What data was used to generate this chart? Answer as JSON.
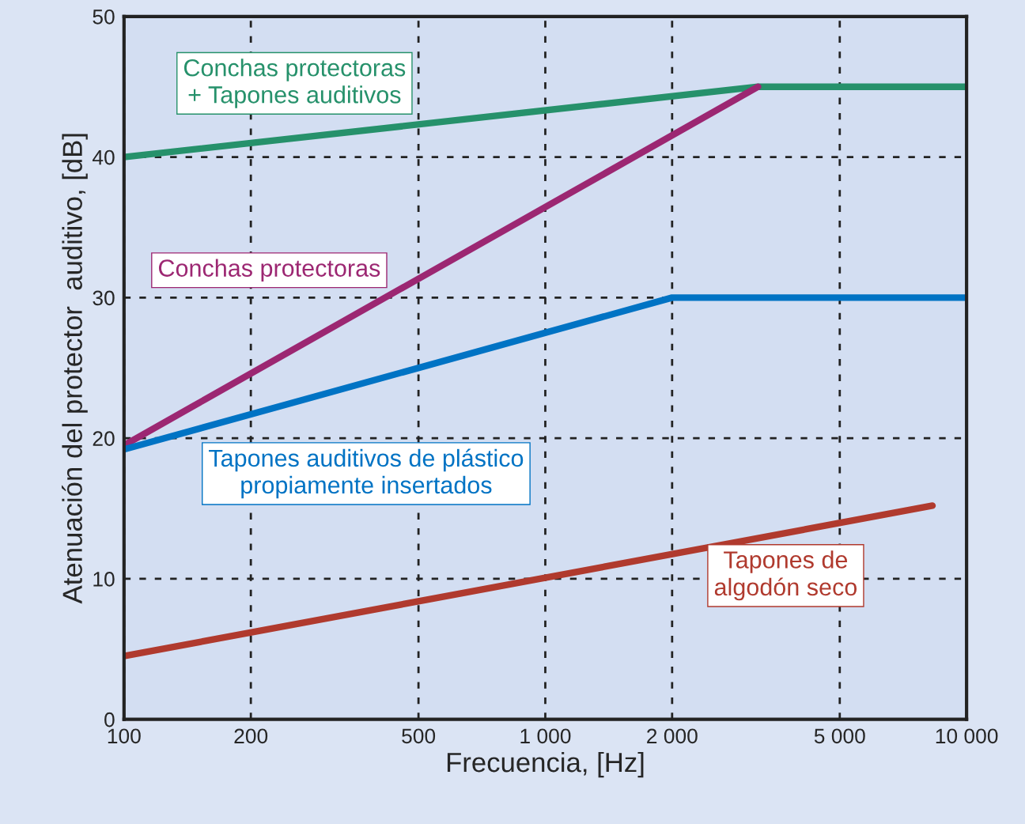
{
  "chart_data": {
    "type": "line",
    "xlabel": "Frecuencia, [Hz]",
    "ylabel": "Atenuación del protector  auditivo, [dB]",
    "log": "x",
    "xlim": [
      100,
      10000
    ],
    "ylim": [
      0,
      50
    ],
    "xticks": [
      100,
      200,
      500,
      {
        "value": 1000,
        "label": "1 000"
      },
      {
        "value": 2000,
        "label": "2 000"
      },
      {
        "value": 5000,
        "label": "5 000"
      },
      {
        "value": 10000,
        "label": "10 000"
      }
    ],
    "yticks": [
      0,
      10,
      20,
      30,
      40,
      50
    ],
    "grid": true,
    "marker": "none",
    "line_style": "solid",
    "series": [
      {
        "name": "Conchas protectoras\n+ Tapones auditivos",
        "color": "#26916b",
        "x": [
          100,
          3200,
          10000
        ],
        "values": [
          40,
          45,
          45
        ]
      },
      {
        "name": "Conchas protectoras",
        "color": "#9c2772",
        "x": [
          100,
          3200
        ],
        "values": [
          19.5,
          45
        ]
      },
      {
        "name": "Tapones auditivos de plástico\npropiamente insertados",
        "color": "#0073c4",
        "x": [
          100,
          2000,
          10000
        ],
        "values": [
          19.2,
          30,
          30
        ]
      },
      {
        "name": "Tapones de\nalgodón seco",
        "color": "#b03a2e",
        "x": [
          100,
          8300
        ],
        "values": [
          4.5,
          15.2
        ]
      }
    ]
  }
}
